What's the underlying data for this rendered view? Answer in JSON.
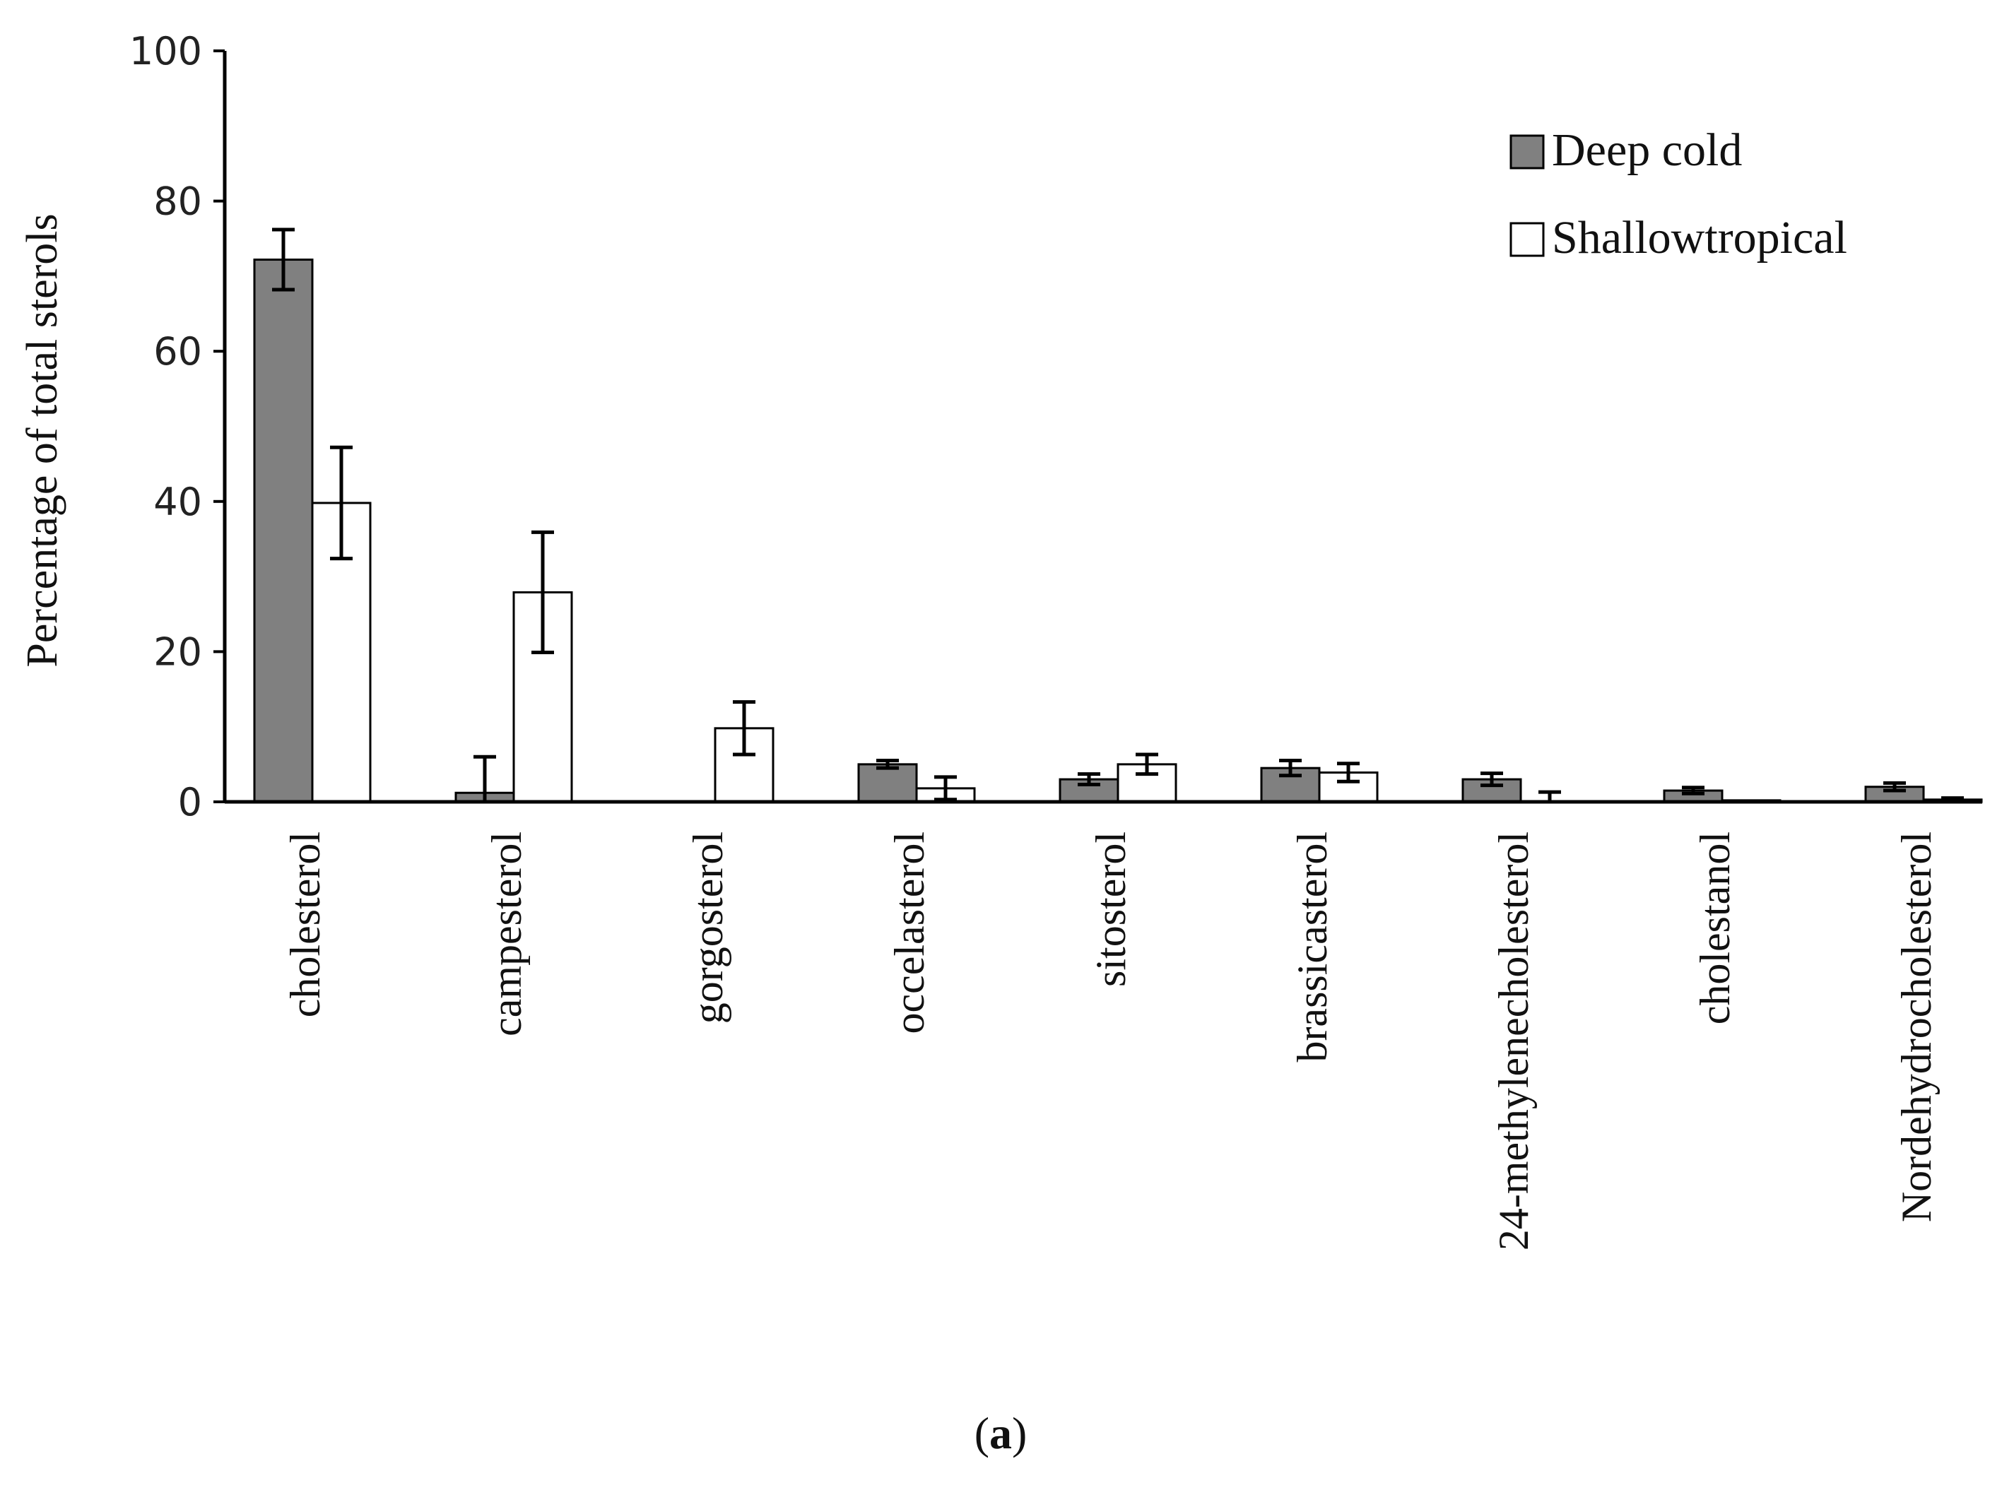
{
  "chart_data": {
    "type": "bar",
    "title": "",
    "xlabel": "",
    "ylabel": "Percentage of total sterols",
    "ylim": [
      0,
      100
    ],
    "yticks": [
      "0",
      "20",
      "40",
      "60",
      "80",
      "100"
    ],
    "categories": [
      "cholesterol",
      "campesterol",
      "gorgosterol",
      "occelasterol",
      "sitosterol",
      "brassicasterol",
      "24-methylenecholesterol",
      "cholestanol",
      "Nordehydrocholesterol"
    ],
    "series": [
      {
        "name": "Deep cold",
        "color": "#808080",
        "values": [
          72.2,
          1.2,
          0,
          5.0,
          3.0,
          4.5,
          3.0,
          1.5,
          2.0
        ],
        "errors": [
          4.0,
          4.8,
          0,
          0.5,
          0.7,
          1.0,
          0.8,
          0.4,
          0.5
        ]
      },
      {
        "name": "Shallow tropical",
        "color": "#ffffff",
        "values": [
          39.8,
          27.9,
          9.8,
          1.8,
          5.0,
          3.9,
          0,
          0.2,
          0.3
        ],
        "errors": [
          7.4,
          8.0,
          3.5,
          1.5,
          1.3,
          1.2,
          1.3,
          0,
          0.2
        ]
      }
    ],
    "legend": {
      "position": "top-right",
      "entries": [
        "Deep cold",
        "Shallowtropical"
      ]
    },
    "grid": false
  },
  "caption": {
    "text": "(a)",
    "open": "(",
    "letter": "a",
    "close": ")"
  }
}
